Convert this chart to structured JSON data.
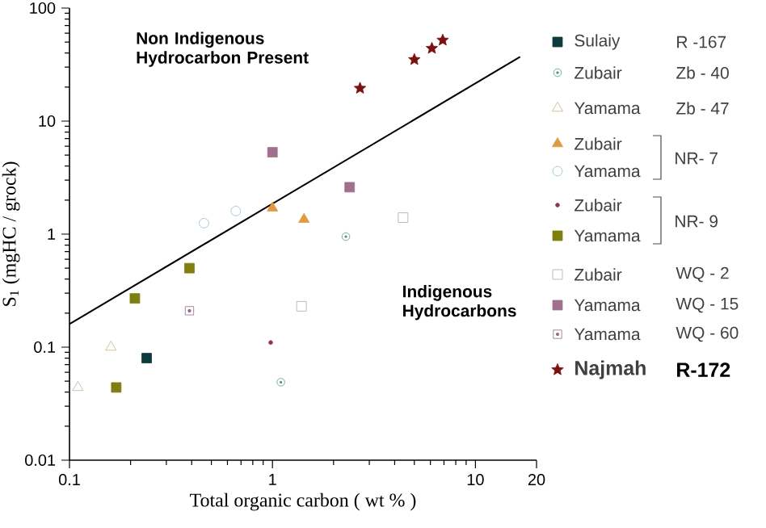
{
  "chart_data": {
    "type": "scatter",
    "xlabel": "Total organic carbon ( wt % )",
    "ylabel": "S$_{1}$ (mgHC / grock)",
    "log": "xy",
    "xlim": [
      0.1,
      20
    ],
    "ylim": [
      0.01,
      100
    ],
    "xticks": [
      0.1,
      1,
      10,
      20
    ],
    "yticks": [
      0.01,
      0.1,
      1,
      10,
      100
    ],
    "legend": "right",
    "annotations": [
      "Non Indigenous Hydrocarbon Present",
      "Indigenous Hydrocarbons",
      "R -167",
      "Zb - 40",
      "Zb - 47",
      "NR- 7",
      "NR- 9",
      "WQ - 2",
      "WQ - 15",
      "WQ - 60",
      "R-172"
    ],
    "series": [
      {
        "name": "Sulaiy",
        "color": "#0d3b3b",
        "marker": "square",
        "x": [
          0.24
        ],
        "values": [
          0.08
        ]
      },
      {
        "name": "Zubair",
        "color": "#5a9a7a",
        "marker": "circle-dot",
        "x": [
          2.3,
          1.1
        ],
        "values": [
          0.95,
          0.049
        ]
      },
      {
        "name": "Yamama",
        "color": "#c8b48a",
        "marker": "triangle-open",
        "x": [
          0.16,
          0.11
        ],
        "values": [
          0.1,
          0.044
        ]
      },
      {
        "name": "Zubair",
        "color": "#e09a40",
        "marker": "triangle",
        "x": [
          1.0,
          1.43
        ],
        "values": [
          1.7,
          1.35
        ]
      },
      {
        "name": "Yamama",
        "color": "#8cc0d0",
        "marker": "circle-open",
        "x": [
          0.46,
          0.66
        ],
        "values": [
          1.25,
          1.6
        ]
      },
      {
        "name": "Zubair",
        "color": "#8b3a4a",
        "marker": "circle",
        "x": [
          0.98
        ],
        "values": [
          0.11
        ]
      },
      {
        "name": "Yamama",
        "color": "#7f7f10",
        "marker": "square",
        "x": [
          0.39,
          0.21,
          0.17
        ],
        "values": [
          0.5,
          0.27,
          0.044
        ]
      },
      {
        "name": "Zubair",
        "color": "#b0a8b0",
        "marker": "square-open",
        "x": [
          4.4,
          1.39
        ],
        "values": [
          1.4,
          0.23
        ]
      },
      {
        "name": "Yamama",
        "color": "#a0708f",
        "marker": "square",
        "x": [
          1.0,
          2.4
        ],
        "values": [
          5.3,
          2.6
        ]
      },
      {
        "name": "Yamama",
        "color": "#9a6a8a",
        "marker": "square-dot",
        "x": [
          0.39
        ],
        "values": [
          0.21
        ]
      },
      {
        "name": "Najmah",
        "color": "#7a1010",
        "marker": "star",
        "x": [
          2.7,
          5.0,
          6.1,
          6.9
        ],
        "values": [
          19.5,
          35,
          44,
          52
        ]
      },
      {
        "type": "line",
        "color": "#000000",
        "x": [
          0.1,
          16.6
        ],
        "values": [
          0.16,
          37
        ]
      }
    ]
  }
}
